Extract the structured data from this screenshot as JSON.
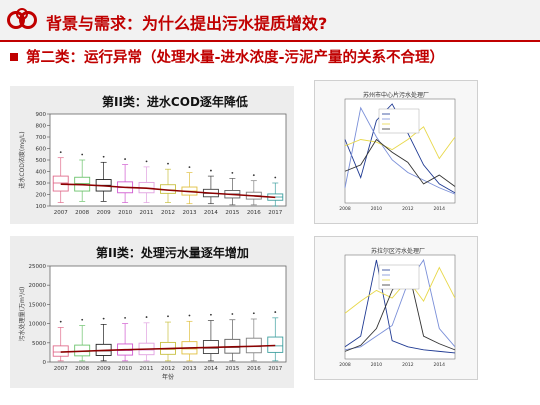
{
  "header": {
    "title": "背景与需求：为什么提出污水提质增效?",
    "subtitle": "第二类：运行异常（处理水量-进水浓度-污泥产量的关系不合理）",
    "accent_color": "#c00000",
    "logo_icon": "interlocking-rings-logo-icon"
  },
  "chart_data": [
    {
      "type": "boxplot",
      "title": "第II类：进水COD逐年降低",
      "ylabel": "进水COD浓度(mg/L)",
      "x": [
        "2007",
        "2008",
        "2009",
        "2010",
        "2011",
        "2012",
        "2013",
        "2014",
        "2015",
        "2016",
        "2017"
      ],
      "y_ticks": [
        "100",
        "200",
        "300",
        "400",
        "500",
        "600",
        "700",
        "800",
        "900"
      ],
      "ylim": [
        100,
        900
      ],
      "trend": [
        290,
        285,
        275,
        262,
        255,
        238,
        225,
        212,
        200,
        188,
        175
      ],
      "boxes": [
        {
          "q1": 230,
          "q3": 360,
          "median": 300,
          "lo": 130,
          "hi": 520
        },
        {
          "q1": 230,
          "q3": 350,
          "median": 295,
          "lo": 140,
          "hi": 500
        },
        {
          "q1": 230,
          "q3": 330,
          "median": 280,
          "lo": 140,
          "hi": 480
        },
        {
          "q1": 215,
          "q3": 310,
          "median": 260,
          "lo": 130,
          "hi": 460
        },
        {
          "q1": 215,
          "q3": 305,
          "median": 255,
          "lo": 130,
          "hi": 440
        },
        {
          "q1": 210,
          "q3": 285,
          "median": 240,
          "lo": 130,
          "hi": 420
        },
        {
          "q1": 195,
          "q3": 265,
          "median": 230,
          "lo": 120,
          "hi": 390
        },
        {
          "q1": 180,
          "q3": 245,
          "median": 210,
          "lo": 120,
          "hi": 360
        },
        {
          "q1": 170,
          "q3": 235,
          "median": 205,
          "lo": 110,
          "hi": 340
        },
        {
          "q1": 160,
          "q3": 220,
          "median": 190,
          "lo": 110,
          "hi": 320
        },
        {
          "q1": 150,
          "q3": 205,
          "median": 178,
          "lo": 100,
          "hi": 300
        }
      ]
    },
    {
      "type": "boxplot",
      "title": "第II类：处理污水量逐年增加",
      "ylabel": "污水处理量(万m³/d)",
      "xlabel": "年份",
      "x": [
        "2007",
        "2008",
        "2009",
        "2010",
        "2011",
        "2012",
        "2013",
        "2014",
        "2015",
        "2016",
        "2017"
      ],
      "y_ticks": [
        "0",
        "5000",
        "10000",
        "15000",
        "20000",
        "25000"
      ],
      "ylim": [
        0,
        25000
      ],
      "trend": [
        2600,
        2800,
        3000,
        3200,
        3350,
        3500,
        3650,
        3800,
        3950,
        4100,
        4300
      ],
      "boxes": [
        {
          "q1": 1500,
          "q3": 4200,
          "median": 2600,
          "lo": 300,
          "hi": 9000
        },
        {
          "q1": 1600,
          "q3": 4400,
          "median": 2700,
          "lo": 300,
          "hi": 9500
        },
        {
          "q1": 1700,
          "q3": 4600,
          "median": 2900,
          "lo": 300,
          "hi": 9800
        },
        {
          "q1": 1800,
          "q3": 4700,
          "median": 3000,
          "lo": 300,
          "hi": 10000
        },
        {
          "q1": 1900,
          "q3": 4900,
          "median": 3100,
          "lo": 300,
          "hi": 10200
        },
        {
          "q1": 2000,
          "q3": 5100,
          "median": 3300,
          "lo": 300,
          "hi": 10400
        },
        {
          "q1": 2100,
          "q3": 5300,
          "median": 3400,
          "lo": 300,
          "hi": 10600
        },
        {
          "q1": 2200,
          "q3": 5600,
          "median": 3600,
          "lo": 300,
          "hi": 10800
        },
        {
          "q1": 2300,
          "q3": 5900,
          "median": 3800,
          "lo": 300,
          "hi": 11000
        },
        {
          "q1": 2400,
          "q3": 6200,
          "median": 4000,
          "lo": 300,
          "hi": 11200
        },
        {
          "q1": 2500,
          "q3": 6500,
          "median": 4200,
          "lo": 300,
          "hi": 11500
        }
      ]
    },
    {
      "type": "line",
      "title": "苏州市中心片污水处理厂",
      "x": [
        "2008",
        "2009",
        "2010",
        "2011",
        "2012",
        "2013",
        "2014",
        "2015"
      ],
      "series": [
        {
          "name": "series-navy",
          "values": [
            5.0,
            2.0,
            6.5,
            7.8,
            5.5,
            3.0,
            1.5,
            0.8
          ]
        },
        {
          "name": "series-blue",
          "values": [
            1.2,
            7.5,
            5.2,
            3.4,
            2.4,
            1.8,
            1.2,
            0.7
          ]
        },
        {
          "name": "series-yellow",
          "values": [
            4.5,
            5.0,
            4.8,
            4.2,
            5.0,
            6.0,
            3.5,
            5.2
          ]
        },
        {
          "name": "series-dark",
          "values": [
            2.5,
            3.0,
            5.0,
            4.0,
            3.2,
            1.5,
            2.2,
            1.3
          ]
        }
      ]
    },
    {
      "type": "line",
      "title": "苏拉尔区污水处理厂",
      "x": [
        "2008",
        "2009",
        "2010",
        "2011",
        "2012",
        "2013",
        "2014",
        "2015"
      ],
      "series": [
        {
          "name": "series-navy",
          "values": [
            0.8,
            1.5,
            6.5,
            1.2,
            0.8,
            0.6,
            0.5,
            0.4
          ]
        },
        {
          "name": "series-blue",
          "values": [
            0.6,
            0.8,
            1.5,
            2.2,
            5.0,
            6.5,
            2.0,
            0.8
          ]
        },
        {
          "name": "series-yellow",
          "values": [
            3.0,
            3.8,
            4.5,
            4.0,
            5.2,
            3.8,
            6.0,
            4.0
          ]
        },
        {
          "name": "series-dark",
          "values": [
            0.5,
            0.9,
            2.0,
            4.5,
            6.0,
            1.5,
            1.0,
            0.6
          ]
        }
      ]
    }
  ]
}
